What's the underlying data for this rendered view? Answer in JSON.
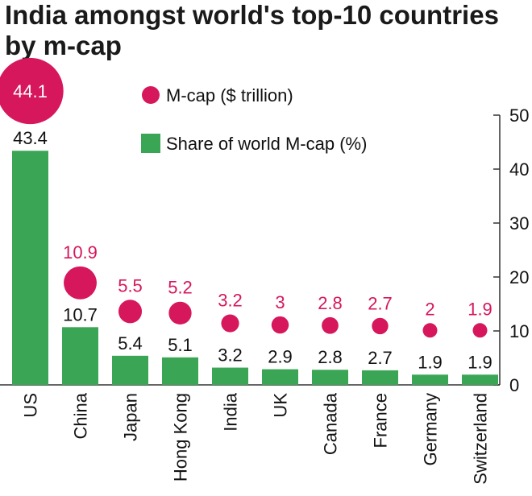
{
  "title": "India amongst world's top-10 countries by m-cap",
  "colors": {
    "bar": "#3aa655",
    "mcap": "#d6175c",
    "mcap_text_white": "#ffffff",
    "axis": "#333333"
  },
  "legend": {
    "mcap_label": "M-cap ($ trillion)",
    "share_label": "Share of world M-cap (%)"
  },
  "chart_data": {
    "type": "bar",
    "title": "India amongst world's top-10 countries by m-cap",
    "categories": [
      "US",
      "China",
      "Japan",
      "Hong Kong",
      "India",
      "UK",
      "Canada",
      "France",
      "Germany",
      "Switzerland"
    ],
    "series": [
      {
        "name": "Share of world M-cap (%)",
        "type": "bar",
        "values": [
          43.4,
          10.7,
          5.4,
          5.1,
          3.2,
          2.9,
          2.8,
          2.7,
          1.9,
          1.9
        ]
      },
      {
        "name": "M-cap ($ trillion)",
        "type": "bubble",
        "values": [
          44.1,
          10.9,
          5.5,
          5.2,
          3.2,
          3,
          2.8,
          2.7,
          2,
          1.9
        ],
        "labels": [
          "44.1",
          "10.9",
          "5.5",
          "5.2",
          "3.2",
          "3",
          "2.8",
          "2.7",
          "2",
          "1.9"
        ]
      }
    ],
    "y_ticks": [
      0,
      10,
      20,
      30,
      40,
      50
    ],
    "ylim": [
      0,
      50
    ],
    "grid": false,
    "legend_position": "top"
  }
}
